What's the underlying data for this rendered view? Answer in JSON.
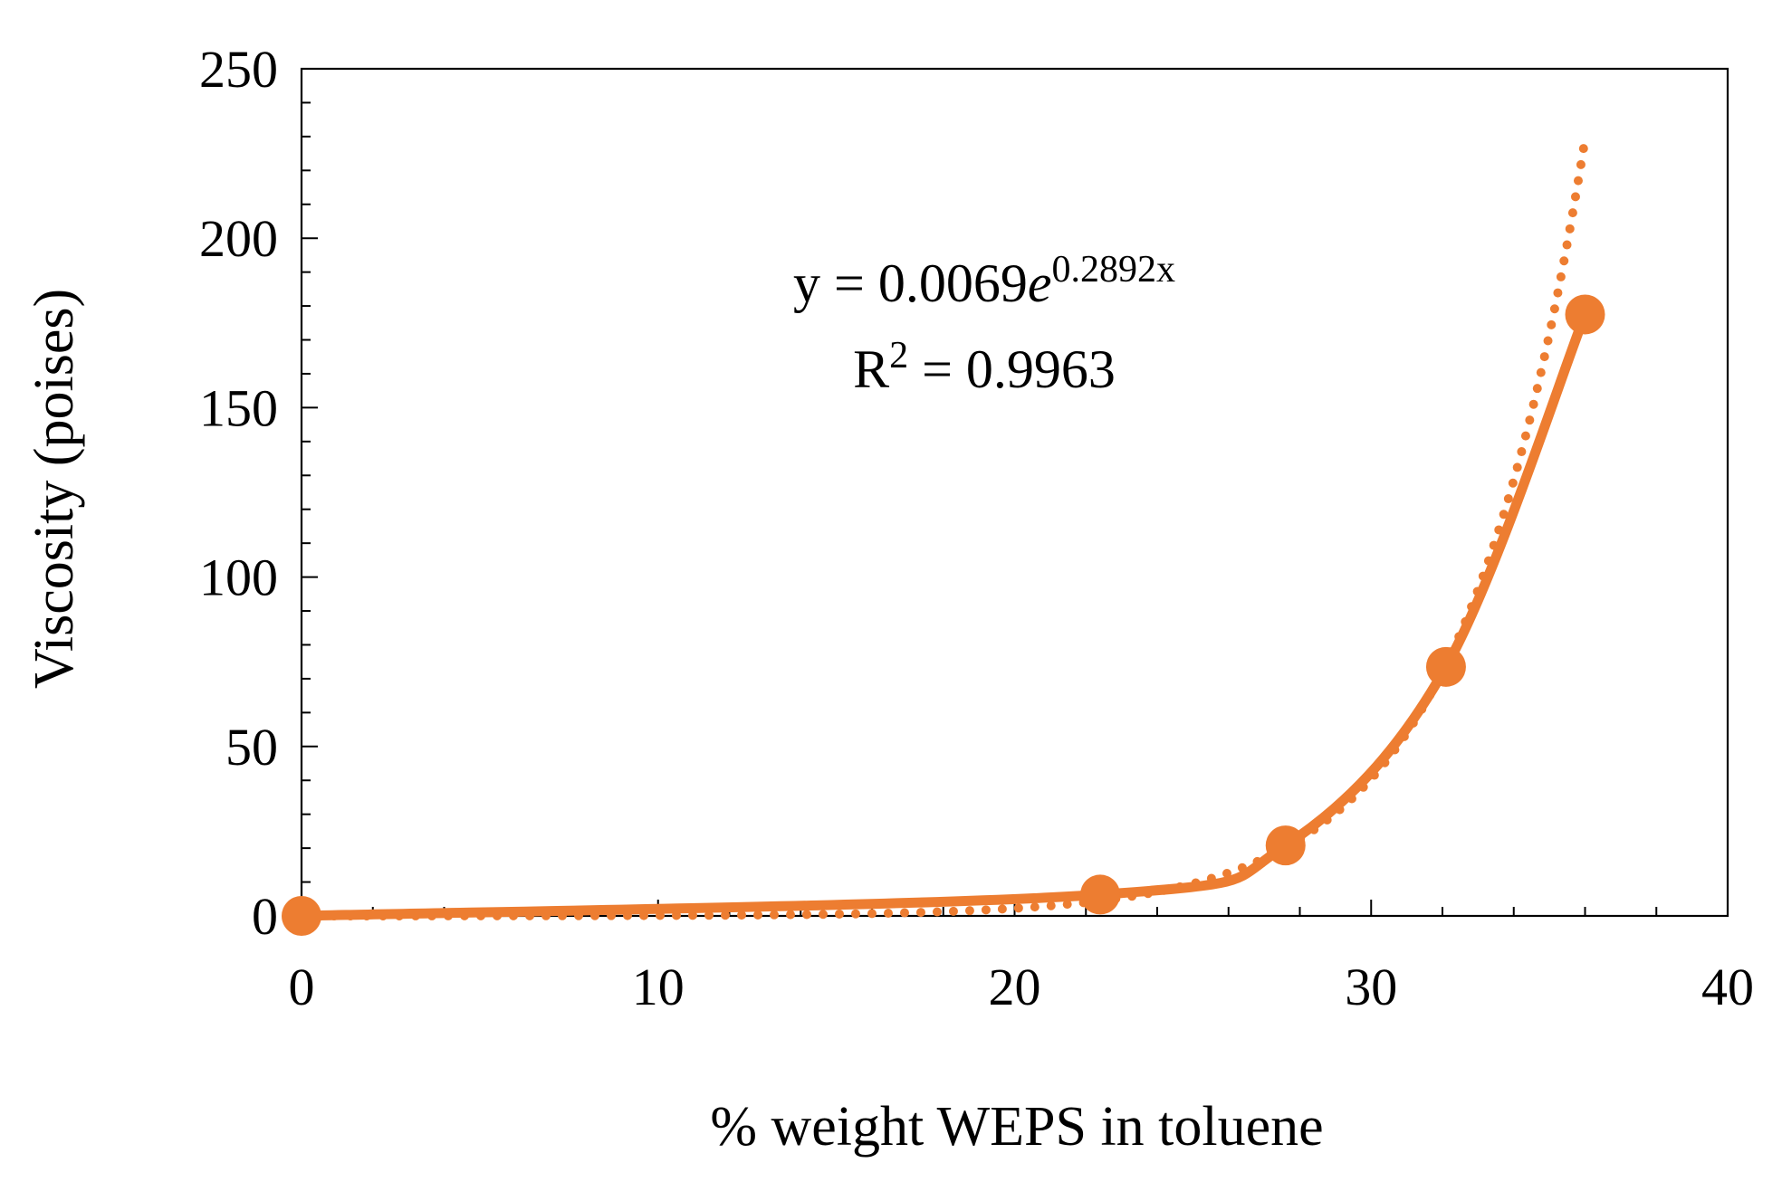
{
  "chart_data": {
    "type": "scatter",
    "title": "",
    "xlabel": "% weight WEPS in toluene",
    "ylabel": "Viscosity (poises)",
    "xlim": [
      0,
      40
    ],
    "ylim": [
      0,
      250
    ],
    "x_ticks": [
      0,
      10,
      20,
      30,
      40
    ],
    "y_ticks": [
      0,
      50,
      100,
      150,
      200,
      250
    ],
    "x_minor_step": 2,
    "y_minor_step": 10,
    "grid": false,
    "legend": "none",
    "color": "#ED7D31",
    "series": [
      {
        "name": "Viscosity",
        "style": "markers with smoothed solid line",
        "x": [
          0,
          22.4,
          27.6,
          32.1,
          36.0
        ],
        "y": [
          0,
          6.3,
          20.8,
          73.5,
          177.5
        ]
      }
    ],
    "trendline": {
      "type": "exponential",
      "style": "dotted",
      "a": 0.0069,
      "b": 0.2892,
      "x_range": [
        0,
        36
      ]
    },
    "annotations": {
      "equation": {
        "prefix": "y = 0.0069",
        "base": "e",
        "exponent": "0.2892x"
      },
      "r_squared": {
        "symbol": "R",
        "power": "2",
        "value": " = 0.9963"
      }
    }
  }
}
